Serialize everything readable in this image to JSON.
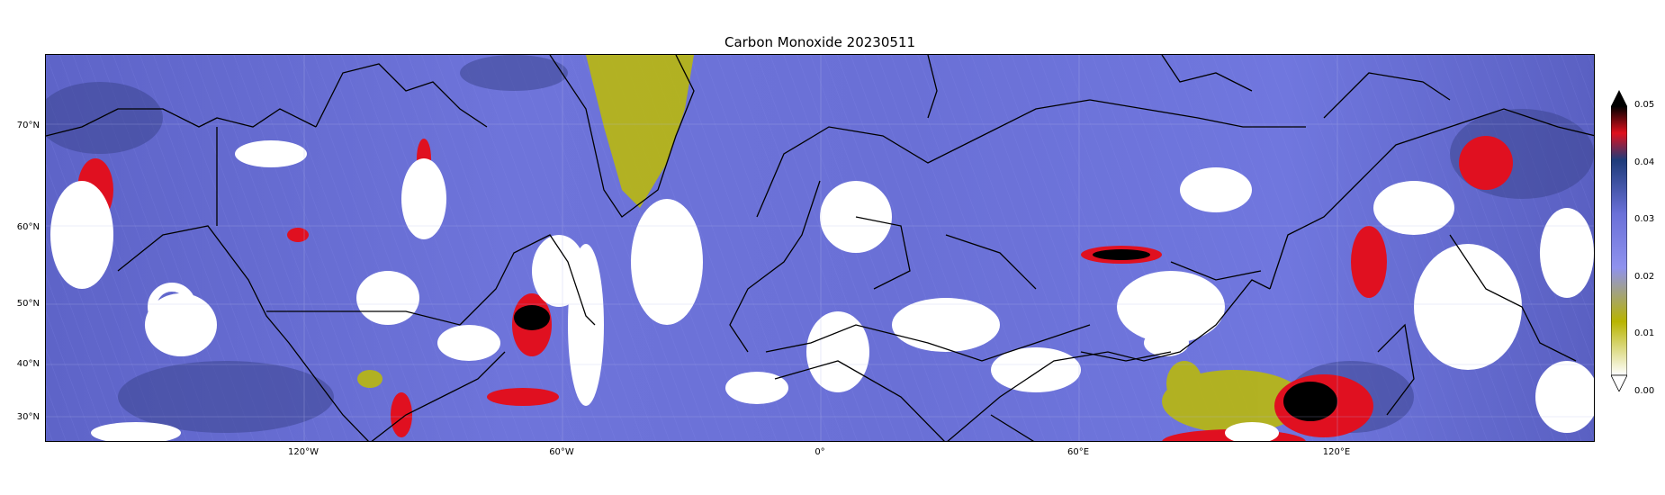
{
  "title": "Carbon Monoxide 20230511",
  "lat_ticks": [
    "70°N",
    "60°N",
    "50°N",
    "40°N",
    "30°N"
  ],
  "lon_ticks": [
    "120°W",
    "60°W",
    "0°",
    "60°E",
    "120°E"
  ],
  "colorbar": {
    "ticks": [
      "0.00",
      "0.01",
      "0.02",
      "0.03",
      "0.04",
      "0.05"
    ],
    "colors": [
      "#ffffff",
      "#b8b400",
      "#8f92ee",
      "#6a70d8",
      "#1e3b7a",
      "#e0101c",
      "#000000"
    ],
    "extend": "both"
  },
  "colors": {
    "background_field": "#6c72d6",
    "low_field": "#b9b80e",
    "high_field": "#e01020",
    "very_high": "#000000",
    "cloud_mask": "#ffffff"
  }
}
